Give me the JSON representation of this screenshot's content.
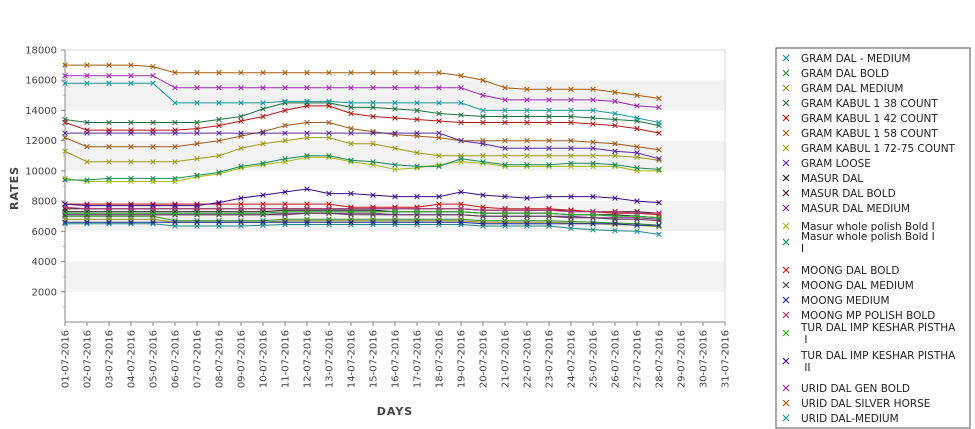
{
  "chart_data": {
    "type": "line",
    "xlabel": "DAYS",
    "ylabel": "RATES",
    "ylim": [
      0,
      18000
    ],
    "yticks": [
      2000,
      4000,
      6000,
      8000,
      10000,
      12000,
      14000,
      16000,
      18000
    ],
    "grid": "alternating horizontal bands",
    "legend_position": "right",
    "x": [
      "01-07-2016",
      "02-07-2016",
      "03-07-2016",
      "04-07-2016",
      "05-07-2016",
      "06-07-2016",
      "07-07-2016",
      "08-07-2016",
      "09-07-2016",
      "10-07-2016",
      "11-07-2016",
      "12-07-2016",
      "13-07-2016",
      "14-07-2016",
      "15-07-2016",
      "16-07-2016",
      "17-07-2016",
      "18-07-2016",
      "19-07-2016",
      "20-07-2016",
      "21-07-2016",
      "22-07-2016",
      "23-07-2016",
      "24-07-2016",
      "25-07-2016",
      "26-07-2016",
      "27-07-2016",
      "28-07-2016",
      "29-07-2016",
      "30-07-2016",
      "31-07-2016"
    ],
    "series": [
      {
        "name": "GRAM DAL - MEDIUM",
        "color": "#1f8a8a",
        "values": [
          6500,
          6500,
          6500,
          6500,
          6500,
          6350,
          6350,
          6350,
          6350,
          6400,
          6450,
          6450,
          6450,
          6450,
          6450,
          6450,
          6450,
          6450,
          6450,
          6350,
          6350,
          6350,
          6350,
          6200,
          6100,
          6050,
          6000,
          5800,
          null,
          null,
          null
        ]
      },
      {
        "name": "GRAM DAL BOLD",
        "color": "#2e8b2e",
        "values": [
          7000,
          7000,
          7000,
          7000,
          7000,
          6700,
          6700,
          6700,
          6700,
          6700,
          6800,
          6800,
          6800,
          6800,
          6800,
          6800,
          6800,
          6800,
          6800,
          6700,
          6700,
          6700,
          6700,
          6650,
          6600,
          6550,
          6500,
          6400,
          null,
          null,
          null
        ]
      },
      {
        "name": "GRAM DAL MEDIUM",
        "color": "#8f8f20",
        "values": [
          6800,
          6800,
          6800,
          6800,
          6800,
          6600,
          6600,
          6600,
          6600,
          6600,
          6700,
          6700,
          6700,
          6700,
          6700,
          6700,
          6700,
          6700,
          6700,
          6600,
          6600,
          6600,
          6600,
          6550,
          6500,
          6450,
          6400,
          6300,
          null,
          null,
          null
        ]
      },
      {
        "name": "GRAM KABUL 1 38 COUNT",
        "color": "#1f6f3f",
        "values": [
          13400,
          13200,
          13200,
          13200,
          13200,
          13200,
          13200,
          13400,
          13600,
          14100,
          14500,
          14500,
          14500,
          14200,
          14200,
          14100,
          14000,
          13800,
          13700,
          13600,
          13600,
          13600,
          13600,
          13600,
          13500,
          13400,
          13300,
          13000,
          null,
          null,
          null
        ]
      },
      {
        "name": "GRAM KABUL 1 42 COUNT",
        "color": "#b01818",
        "values": [
          13200,
          12700,
          12700,
          12700,
          12700,
          12700,
          12800,
          13000,
          13300,
          13600,
          14000,
          14300,
          14300,
          13800,
          13600,
          13500,
          13400,
          13300,
          13200,
          13200,
          13200,
          13200,
          13200,
          13200,
          13100,
          13000,
          12800,
          12500,
          null,
          null,
          null
        ]
      },
      {
        "name": "GRAM KABUL 1 58 COUNT",
        "color": "#a05a1a",
        "values": [
          12200,
          11600,
          11600,
          11600,
          11600,
          11600,
          11800,
          12000,
          12300,
          12600,
          13000,
          13200,
          13200,
          12800,
          12600,
          12400,
          12300,
          12200,
          12000,
          12000,
          12000,
          12000,
          12000,
          12000,
          11900,
          11800,
          11600,
          11400,
          null,
          null,
          null
        ]
      },
      {
        "name": "GRAM KABUL 1 72-75 COUNT",
        "color": "#9a9a18",
        "values": [
          11300,
          10600,
          10600,
          10600,
          10600,
          10600,
          10800,
          11000,
          11500,
          11800,
          12000,
          12200,
          12200,
          11800,
          11800,
          11500,
          11200,
          11000,
          11000,
          11000,
          11000,
          11000,
          11000,
          11000,
          11000,
          11000,
          10900,
          10700,
          null,
          null,
          null
        ]
      },
      {
        "name": "GRAM LOOSE",
        "color": "#5a2a9a",
        "values": [
          12500,
          12500,
          12500,
          12500,
          12500,
          12500,
          12500,
          12500,
          12500,
          12500,
          12500,
          12500,
          12500,
          12500,
          12500,
          12500,
          12500,
          12500,
          12000,
          11800,
          11500,
          11500,
          11500,
          11500,
          11500,
          11300,
          11200,
          10800,
          null,
          null,
          null
        ]
      },
      {
        "name": "MASUR DAL",
        "color": "#1a1a1a",
        "values": [
          7300,
          7300,
          7300,
          7300,
          7300,
          7300,
          7300,
          7300,
          7300,
          7300,
          7400,
          7400,
          7400,
          7400,
          7400,
          7300,
          7300,
          7300,
          7300,
          7200,
          7200,
          7200,
          7200,
          7100,
          7100,
          7100,
          7000,
          6900,
          null,
          null,
          null
        ]
      },
      {
        "name": "MASUR DAL BOLD",
        "color": "#3a1a1a",
        "values": [
          7500,
          7500,
          7500,
          7500,
          7500,
          7500,
          7500,
          7500,
          7500,
          7500,
          7500,
          7500,
          7500,
          7500,
          7500,
          7500,
          7500,
          7500,
          7500,
          7400,
          7400,
          7400,
          7400,
          7400,
          7300,
          7300,
          7300,
          7200,
          null,
          null,
          null
        ]
      },
      {
        "name": "MASUR DAL MEDIUM",
        "color": "#7a2a7a",
        "values": [
          7100,
          7100,
          7100,
          7100,
          7100,
          7100,
          7100,
          7100,
          7100,
          7100,
          7200,
          7200,
          7200,
          7200,
          7200,
          7100,
          7100,
          7100,
          7100,
          7000,
          7000,
          7000,
          7000,
          7000,
          6900,
          6900,
          6900,
          6800,
          null,
          null,
          null
        ]
      },
      {
        "name": "Masur whole polish Bold I",
        "color": "#a8b818",
        "values": [
          9500,
          9300,
          9300,
          9300,
          9300,
          9300,
          9600,
          9800,
          10200,
          10400,
          10600,
          10900,
          10900,
          10600,
          10400,
          10100,
          10200,
          10400,
          10600,
          10500,
          10300,
          10300,
          10300,
          10300,
          10300,
          10300,
          10000,
          10000,
          null,
          null,
          null
        ]
      },
      {
        "name": "Masur whole polish Bold I I",
        "color": "#1a8a5a",
        "values": [
          9400,
          9400,
          9500,
          9500,
          9500,
          9500,
          9700,
          9900,
          10300,
          10500,
          10800,
          11000,
          11000,
          10700,
          10600,
          10400,
          10300,
          10300,
          10800,
          10600,
          10400,
          10400,
          10400,
          10500,
          10500,
          10400,
          10200,
          10100,
          null,
          null,
          null
        ]
      },
      {
        "name": "MOONG DAL BOLD",
        "color": "#c81818",
        "values": [
          7800,
          7800,
          7800,
          7800,
          7800,
          7800,
          7800,
          7800,
          7800,
          7800,
          7800,
          7800,
          7800,
          7600,
          7600,
          7600,
          7600,
          7800,
          7800,
          7600,
          7500,
          7500,
          7500,
          7400,
          7300,
          7200,
          7200,
          7100,
          null,
          null,
          null
        ]
      },
      {
        "name": "MOONG DAL MEDIUM",
        "color": "#5a3a5a",
        "values": [
          7100,
          7100,
          7100,
          7100,
          7100,
          7100,
          7100,
          7100,
          7100,
          7100,
          7100,
          7200,
          7200,
          7100,
          7100,
          7100,
          7100,
          7100,
          7100,
          7000,
          7000,
          7000,
          7000,
          6900,
          6900,
          6800,
          6800,
          6700,
          null,
          null,
          null
        ]
      },
      {
        "name": "MOONG MEDIUM",
        "color": "#1a2a8a",
        "values": [
          6600,
          6600,
          6600,
          6600,
          6600,
          6600,
          6600,
          6600,
          6600,
          6600,
          6600,
          6600,
          6600,
          6600,
          6600,
          6600,
          6600,
          6600,
          6600,
          6500,
          6500,
          6500,
          6500,
          6500,
          6500,
          6500,
          6400,
          6400,
          null,
          null,
          null
        ]
      },
      {
        "name": "MOONG MP POLISH BOLD",
        "color": "#b0307a",
        "values": [
          7600,
          7500,
          7500,
          7500,
          7500,
          7500,
          7500,
          7500,
          7500,
          7500,
          7500,
          7500,
          7500,
          7500,
          7500,
          7500,
          7500,
          7500,
          7500,
          7400,
          7400,
          7400,
          7400,
          7300,
          7300,
          7300,
          7200,
          7200,
          null,
          null,
          null
        ]
      },
      {
        "name": "TUR DAL IMP KESHAR PISTHA I",
        "color": "#2aa82a",
        "values": [
          7200,
          7200,
          7200,
          7200,
          7200,
          7200,
          7200,
          7200,
          7200,
          7200,
          7300,
          7300,
          7300,
          7300,
          7300,
          7300,
          7300,
          7300,
          7300,
          7200,
          7200,
          7200,
          7200,
          7100,
          7100,
          7000,
          7000,
          6900,
          null,
          null,
          null
        ]
      },
      {
        "name": "TUR DAL IMP KESHAR PISTHA II",
        "color": "#3a0a8a",
        "values": [
          7800,
          7700,
          7700,
          7700,
          7700,
          7700,
          7700,
          7900,
          8200,
          8400,
          8600,
          8800,
          8500,
          8500,
          8400,
          8300,
          8300,
          8300,
          8600,
          8400,
          8300,
          8200,
          8300,
          8300,
          8300,
          8200,
          8000,
          7900,
          null,
          null,
          null
        ]
      },
      {
        "name": "URID DAL GEN BOLD",
        "color": "#a02ab0",
        "values": [
          16300,
          16300,
          16300,
          16300,
          16300,
          15500,
          15500,
          15500,
          15500,
          15500,
          15500,
          15500,
          15500,
          15500,
          15500,
          15500,
          15500,
          15500,
          15500,
          15000,
          14700,
          14700,
          14700,
          14700,
          14700,
          14600,
          14300,
          14200,
          null,
          null,
          null
        ]
      },
      {
        "name": "URID DAL SILVER HORSE",
        "color": "#a85a0a",
        "values": [
          17000,
          17000,
          17000,
          17000,
          16900,
          16500,
          16500,
          16500,
          16500,
          16500,
          16500,
          16500,
          16500,
          16500,
          16500,
          16500,
          16500,
          16500,
          16300,
          16000,
          15500,
          15400,
          15400,
          15400,
          15400,
          15200,
          15000,
          14800,
          null,
          null,
          null
        ]
      },
      {
        "name": "URID DAL-MEDIUM",
        "color": "#1a9a9a",
        "values": [
          15800,
          15800,
          15800,
          15800,
          15800,
          14500,
          14500,
          14500,
          14500,
          14500,
          14600,
          14600,
          14600,
          14500,
          14500,
          14500,
          14500,
          14500,
          14500,
          14000,
          14000,
          14000,
          14000,
          14000,
          14000,
          13800,
          13500,
          13200,
          null,
          null,
          null
        ]
      }
    ]
  }
}
